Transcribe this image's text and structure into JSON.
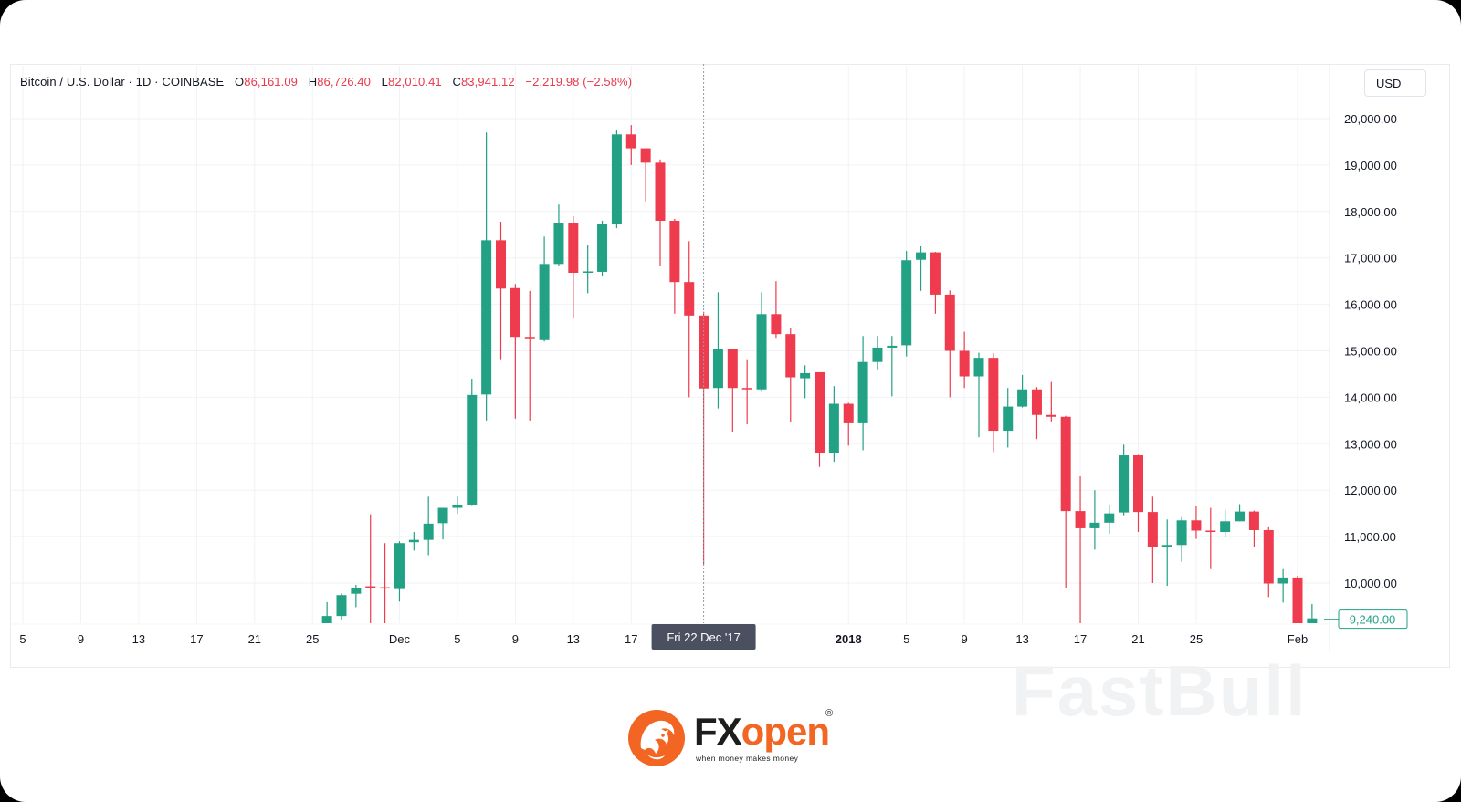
{
  "legend": {
    "symbol": "Bitcoin / U.S. Dollar · 1D · COINBASE",
    "o_label": "O",
    "o_value": "86,161.09",
    "h_label": "H",
    "h_value": "86,726.40",
    "l_label": "L",
    "l_value": "82,010.41",
    "c_label": "C",
    "c_value": "83,941.12",
    "change": "−2,219.98 (−2.58%)"
  },
  "currency_button": "USD",
  "crosshair_label": "Fri 22 Dec '17",
  "last_price_label": "9,240.00",
  "watermark": "FastBull",
  "logo": {
    "fx": "FX",
    "open": "open",
    "reg": "®",
    "slogan": "when money makes money"
  },
  "colors": {
    "up": "#22a184",
    "down": "#ee3b4d",
    "grid": "#f0f2f6",
    "axis_text": "#131722",
    "crosshair": "#9598a1",
    "crosshair_label_bg": "#4a5060",
    "logo_orange": "#f26522"
  },
  "chart_data": {
    "type": "candlestick",
    "ylim": [
      9000,
      20650
    ],
    "y_ticks": [
      {
        "value": 10000,
        "label": "10,000.00"
      },
      {
        "value": 11000,
        "label": "11,000.00"
      },
      {
        "value": 12000,
        "label": "12,000.00"
      },
      {
        "value": 13000,
        "label": "13,000.00"
      },
      {
        "value": 14000,
        "label": "14,000.00"
      },
      {
        "value": 15000,
        "label": "15,000.00"
      },
      {
        "value": 16000,
        "label": "16,000.00"
      },
      {
        "value": 17000,
        "label": "17,000.00"
      },
      {
        "value": 18000,
        "label": "18,000.00"
      },
      {
        "value": 19000,
        "label": "19,000.00"
      },
      {
        "value": 20000,
        "label": "20,000.00"
      }
    ],
    "x_ticks": [
      {
        "date": "2017-11-05",
        "label": "5"
      },
      {
        "date": "2017-11-09",
        "label": "9"
      },
      {
        "date": "2017-11-13",
        "label": "13"
      },
      {
        "date": "2017-11-17",
        "label": "17"
      },
      {
        "date": "2017-11-21",
        "label": "21"
      },
      {
        "date": "2017-11-25",
        "label": "25"
      },
      {
        "date": "2017-12-01",
        "label": "Dec"
      },
      {
        "date": "2017-12-05",
        "label": "5"
      },
      {
        "date": "2017-12-09",
        "label": "9"
      },
      {
        "date": "2017-12-13",
        "label": "13"
      },
      {
        "date": "2017-12-17",
        "label": "17"
      },
      {
        "date": "2018-01-01",
        "label": "2018",
        "bold": true
      },
      {
        "date": "2018-01-05",
        "label": "5"
      },
      {
        "date": "2018-01-09",
        "label": "9"
      },
      {
        "date": "2018-01-13",
        "label": "13"
      },
      {
        "date": "2018-01-17",
        "label": "17"
      },
      {
        "date": "2018-01-21",
        "label": "21"
      },
      {
        "date": "2018-01-25",
        "label": "25"
      },
      {
        "date": "2018-02-01",
        "label": "Feb"
      }
    ],
    "x_first_date": "2017-11-05",
    "x_last_date": "2018-02-01",
    "crosshair_date": "2017-12-22",
    "last_price": 9240,
    "candles": [
      {
        "date": "2017-11-26",
        "o": 8900,
        "h": 9590,
        "l": 8800,
        "c": 9290
      },
      {
        "date": "2017-11-27",
        "o": 9290,
        "h": 9780,
        "l": 9200,
        "c": 9740
      },
      {
        "date": "2017-11-28",
        "o": 9770,
        "h": 9960,
        "l": 9480,
        "c": 9900
      },
      {
        "date": "2017-11-29",
        "o": 9930,
        "h": 11480,
        "l": 8850,
        "c": 9910
      },
      {
        "date": "2017-11-30",
        "o": 9910,
        "h": 10860,
        "l": 8750,
        "c": 9890
      },
      {
        "date": "2017-12-01",
        "o": 9870,
        "h": 10900,
        "l": 9600,
        "c": 10860
      },
      {
        "date": "2017-12-02",
        "o": 10880,
        "h": 11100,
        "l": 10700,
        "c": 10930
      },
      {
        "date": "2017-12-03",
        "o": 10930,
        "h": 11860,
        "l": 10600,
        "c": 11280
      },
      {
        "date": "2017-12-04",
        "o": 11290,
        "h": 11620,
        "l": 10940,
        "c": 11620
      },
      {
        "date": "2017-12-05",
        "o": 11620,
        "h": 11860,
        "l": 11500,
        "c": 11680
      },
      {
        "date": "2017-12-06",
        "o": 11690,
        "h": 14400,
        "l": 11660,
        "c": 14050
      },
      {
        "date": "2017-12-07",
        "o": 14060,
        "h": 19700,
        "l": 13500,
        "c": 17380
      },
      {
        "date": "2017-12-08",
        "o": 17380,
        "h": 17780,
        "l": 14800,
        "c": 16340
      },
      {
        "date": "2017-12-09",
        "o": 16350,
        "h": 16440,
        "l": 13540,
        "c": 15300
      },
      {
        "date": "2017-12-10",
        "o": 15300,
        "h": 16290,
        "l": 13500,
        "c": 15280
      },
      {
        "date": "2017-12-11",
        "o": 15230,
        "h": 17460,
        "l": 15200,
        "c": 16870
      },
      {
        "date": "2017-12-12",
        "o": 16870,
        "h": 18150,
        "l": 16840,
        "c": 17760
      },
      {
        "date": "2017-12-13",
        "o": 17760,
        "h": 17900,
        "l": 15700,
        "c": 16680
      },
      {
        "date": "2017-12-14",
        "o": 16680,
        "h": 17280,
        "l": 16240,
        "c": 16710
      },
      {
        "date": "2017-12-15",
        "o": 16700,
        "h": 17800,
        "l": 16600,
        "c": 17740
      },
      {
        "date": "2017-12-16",
        "o": 17730,
        "h": 19760,
        "l": 17640,
        "c": 19660
      },
      {
        "date": "2017-12-17",
        "o": 19660,
        "h": 19860,
        "l": 19000,
        "c": 19360
      },
      {
        "date": "2017-12-18",
        "o": 19360,
        "h": 19360,
        "l": 18220,
        "c": 19050
      },
      {
        "date": "2017-12-19",
        "o": 19050,
        "h": 19120,
        "l": 16820,
        "c": 17800
      },
      {
        "date": "2017-12-20",
        "o": 17800,
        "h": 17840,
        "l": 15800,
        "c": 16480
      },
      {
        "date": "2017-12-21",
        "o": 16480,
        "h": 17360,
        "l": 14000,
        "c": 15760
      },
      {
        "date": "2017-12-22",
        "o": 15760,
        "h": 15840,
        "l": 10400,
        "c": 14190
      },
      {
        "date": "2017-12-23",
        "o": 14200,
        "h": 16260,
        "l": 13760,
        "c": 15040
      },
      {
        "date": "2017-12-24",
        "o": 15040,
        "h": 15040,
        "l": 13260,
        "c": 14200
      },
      {
        "date": "2017-12-25",
        "o": 14200,
        "h": 14800,
        "l": 13420,
        "c": 14170
      },
      {
        "date": "2017-12-26",
        "o": 14170,
        "h": 16260,
        "l": 14120,
        "c": 15790
      },
      {
        "date": "2017-12-27",
        "o": 15790,
        "h": 16500,
        "l": 15280,
        "c": 15360
      },
      {
        "date": "2017-12-28",
        "o": 15360,
        "h": 15500,
        "l": 13460,
        "c": 14430
      },
      {
        "date": "2017-12-29",
        "o": 14410,
        "h": 14690,
        "l": 13980,
        "c": 14520
      },
      {
        "date": "2017-12-30",
        "o": 14540,
        "h": 14540,
        "l": 12500,
        "c": 12800
      },
      {
        "date": "2017-12-31",
        "o": 12800,
        "h": 14240,
        "l": 12610,
        "c": 13860
      },
      {
        "date": "2018-01-01",
        "o": 13860,
        "h": 13880,
        "l": 12960,
        "c": 13440
      },
      {
        "date": "2018-01-02",
        "o": 13440,
        "h": 15320,
        "l": 12860,
        "c": 14760
      },
      {
        "date": "2018-01-03",
        "o": 14760,
        "h": 15320,
        "l": 14600,
        "c": 15070
      },
      {
        "date": "2018-01-04",
        "o": 15070,
        "h": 15320,
        "l": 14020,
        "c": 15110
      },
      {
        "date": "2018-01-05",
        "o": 15120,
        "h": 17150,
        "l": 14880,
        "c": 16950
      },
      {
        "date": "2018-01-06",
        "o": 16960,
        "h": 17250,
        "l": 16290,
        "c": 17120
      },
      {
        "date": "2018-01-07",
        "o": 17120,
        "h": 17130,
        "l": 15800,
        "c": 16210
      },
      {
        "date": "2018-01-08",
        "o": 16210,
        "h": 16300,
        "l": 14000,
        "c": 15000
      },
      {
        "date": "2018-01-09",
        "o": 15000,
        "h": 15410,
        "l": 14200,
        "c": 14450
      },
      {
        "date": "2018-01-10",
        "o": 14450,
        "h": 14960,
        "l": 13140,
        "c": 14850
      },
      {
        "date": "2018-01-11",
        "o": 14850,
        "h": 14950,
        "l": 12820,
        "c": 13280
      },
      {
        "date": "2018-01-12",
        "o": 13280,
        "h": 14200,
        "l": 12920,
        "c": 13800
      },
      {
        "date": "2018-01-13",
        "o": 13800,
        "h": 14480,
        "l": 13780,
        "c": 14170
      },
      {
        "date": "2018-01-14",
        "o": 14170,
        "h": 14220,
        "l": 13100,
        "c": 13620
      },
      {
        "date": "2018-01-15",
        "o": 13620,
        "h": 14330,
        "l": 13480,
        "c": 13580
      },
      {
        "date": "2018-01-16",
        "o": 13580,
        "h": 13600,
        "l": 9900,
        "c": 11550
      },
      {
        "date": "2018-01-17",
        "o": 11550,
        "h": 12300,
        "l": 9000,
        "c": 11180
      },
      {
        "date": "2018-01-18",
        "o": 11180,
        "h": 12000,
        "l": 10720,
        "c": 11300
      },
      {
        "date": "2018-01-19",
        "o": 11300,
        "h": 11680,
        "l": 11060,
        "c": 11500
      },
      {
        "date": "2018-01-20",
        "o": 11520,
        "h": 12980,
        "l": 11460,
        "c": 12750
      },
      {
        "date": "2018-01-21",
        "o": 12750,
        "h": 12760,
        "l": 11100,
        "c": 11530
      },
      {
        "date": "2018-01-22",
        "o": 11530,
        "h": 11860,
        "l": 10000,
        "c": 10780
      },
      {
        "date": "2018-01-23",
        "o": 10780,
        "h": 11370,
        "l": 9940,
        "c": 10820
      },
      {
        "date": "2018-01-24",
        "o": 10820,
        "h": 11420,
        "l": 10460,
        "c": 11350
      },
      {
        "date": "2018-01-25",
        "o": 11350,
        "h": 11650,
        "l": 10950,
        "c": 11130
      },
      {
        "date": "2018-01-26",
        "o": 11130,
        "h": 11620,
        "l": 10300,
        "c": 11100
      },
      {
        "date": "2018-01-27",
        "o": 11100,
        "h": 11580,
        "l": 10980,
        "c": 11330
      },
      {
        "date": "2018-01-28",
        "o": 11330,
        "h": 11700,
        "l": 11330,
        "c": 11540
      },
      {
        "date": "2018-01-29",
        "o": 11540,
        "h": 11560,
        "l": 10780,
        "c": 11140
      },
      {
        "date": "2018-01-30",
        "o": 11140,
        "h": 11200,
        "l": 9700,
        "c": 9990
      },
      {
        "date": "2018-01-31",
        "o": 9990,
        "h": 10300,
        "l": 9580,
        "c": 10120
      },
      {
        "date": "2018-02-01",
        "o": 10120,
        "h": 10160,
        "l": 8800,
        "c": 8950
      },
      {
        "date": "2018-02-02",
        "o": 8900,
        "h": 9550,
        "l": 8800,
        "c": 9240
      }
    ]
  }
}
